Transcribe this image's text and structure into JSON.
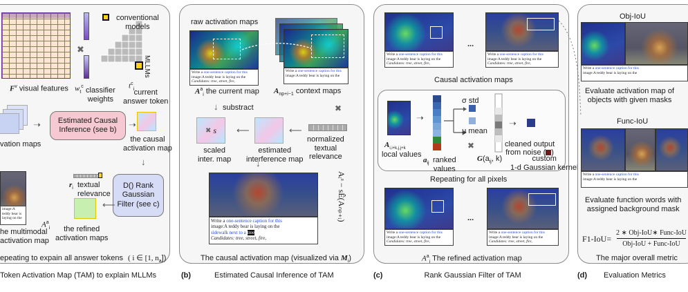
{
  "panel_a": {
    "conventional_models": "conventional\nmodels",
    "mllms": "MLLMs",
    "visual_features_sym": "F",
    "visual_features_sup": "v",
    "visual_features": "visual features",
    "classifier_sym": "w",
    "classifier_sub": "t",
    "classifier_sup": "c",
    "classifier_weights": "classifier\nweights",
    "token_sym": "t",
    "token_sup": "c",
    "token_sub": "i",
    "current_answer_token": "current\nanswer token",
    "estimated_causal_inference": "Estimated Causal\nInference (see b)",
    "causal_activation_map": "the causal\nactivation map",
    "activation_maps_partial": "vation maps",
    "textual_relevance_sym": "r",
    "textual_relevance_sub": "i",
    "textual_relevance": "textual\nrelevance",
    "rank_gaussian_filter": "D() Rank\nGaussian\nFilter (see c)",
    "refined_sym": "A",
    "refined_sub": "i",
    "refined_sup": "a",
    "refined_activation_maps": "the refined\nactivation maps",
    "multimodal_partial": "he multimodal\nactivation map",
    "repeating": "epeating to expain all answer tokens",
    "repeating_range": "( i ∈ [1, n",
    "repeating_range_sub": "a",
    "repeating_range_end": "])"
  },
  "panel_b": {
    "raw_activation_maps": "raw activation maps",
    "current_map_sym": "A",
    "current_map_sub": "i",
    "current_map_sup": "a",
    "current_map": "the current map",
    "context_sym": "A",
    "context_sub": "n",
    "context_sub2": "p",
    "context_sub3": "+i−1",
    "context_maps": "context maps",
    "substract": "substract",
    "scaled_symbol": "s",
    "scaled_inter_map": "scaled\ninter. map",
    "estimated_interference_map": "estimated\ninterference map",
    "normalized_textual_relevance": "normalized\ntextual\nrelevance",
    "formula_side": "Aᵢᵃ − sÊ(Aₙₚ₊ᵢ)",
    "causal_activation_map_label": "The causal activation map (visualized via ",
    "causal_activation_map_sym": "M",
    "causal_activation_map_sub": "i",
    "causal_activation_map_end": ")"
  },
  "panel_c": {
    "causal_activation_maps": "Causal activation maps",
    "ellipsis": "...",
    "local_values_sym": "A",
    "local_values_sub": "i,i+k,j,j+k",
    "local_values": "local values",
    "ranked_sym": "a",
    "ranked_sub": "ij",
    "ranked_values": "ranked\nvalues",
    "std": "σ std",
    "mean": "μ mean",
    "cleaned_output": "cleaned output\nfrom noise (",
    "cleaned_output_end": ")",
    "kernel_sym": "G",
    "kernel_args": "(a",
    "kernel_args_sub": "ij",
    "kernel_args_end": ", k)",
    "kernel_label": "custom\n1-d Gaussian kernel",
    "repeating_all_pixels": "Repeating for all pixels",
    "refined_sym": "A",
    "refined_sub": "i",
    "refined_sup": "a",
    "refined_activation_map": "The refined activation map"
  },
  "panel_d": {
    "obj_iou": "Obj-IoU",
    "evaluate_activation": "Evaluate activation map of\nobjects with given masks",
    "func_iou": "Func-IoU",
    "evaluate_function": "Evaluate function words with\nassigned background mask",
    "f1_label": "F1-IoU=",
    "f1_numerator": "2 ∗ Obj-IoU∗ Func-IoU",
    "f1_denominator": "Obj-IoU + Func-IoU",
    "major_metric": "The major overall metric"
  },
  "captions": {
    "prompt_prefix": "Write a",
    "prompt_blue": "one-sentence caption for this",
    "prompt_line2": "image:A teddy bear is laying on the",
    "prompt_line3": "sidewalk next to a",
    "prompt_highlight": "tree",
    "candidates": "Candidates: tree, street, fire,"
  },
  "bottom": {
    "a_text": "Token Activation Map (TAM) to explain MLLMs",
    "b_letter": "(b)",
    "b_text": "Estimated Causal Inference of TAM",
    "c_letter": "(c)",
    "c_text": "Rank Gaussian Filter of TAM",
    "d_letter": "(d)",
    "d_text": "Evaluation Metrics"
  },
  "colors": {
    "pink_box": "#f6c9d2",
    "green_box": "#c7f0b0",
    "blue_box": "#d6dcf5",
    "purple_matrix": "#6a2f9a",
    "panel_border": "#8a8a8a"
  }
}
